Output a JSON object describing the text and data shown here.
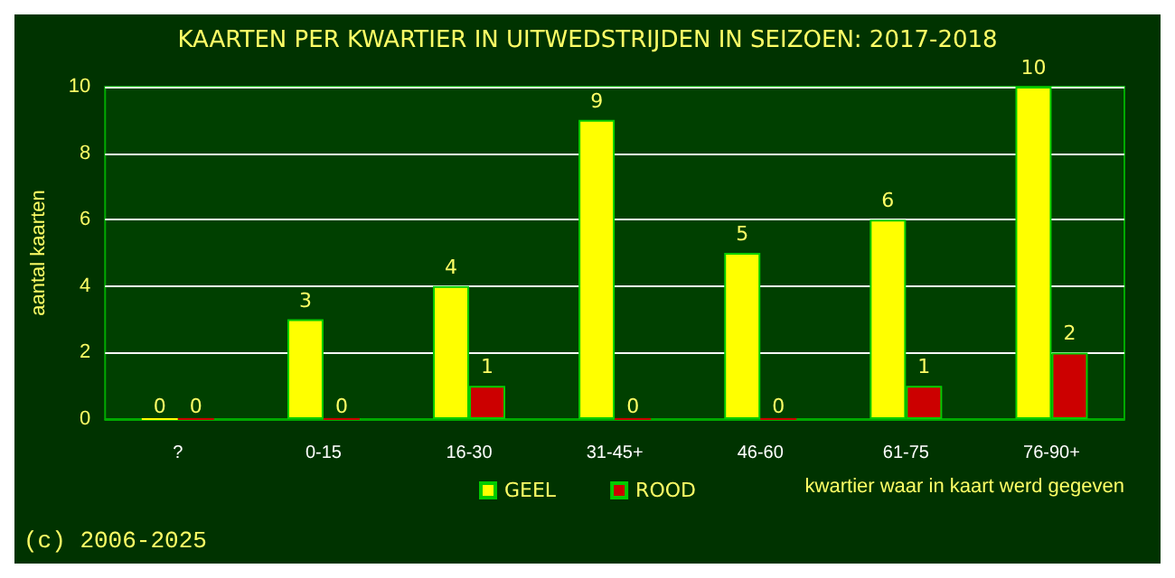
{
  "chart_data": {
    "type": "bar",
    "title": "KAARTEN PER KWARTIER IN UITWEDSTRIJDEN IN SEIZOEN: 2017-2018",
    "xlabel": "kwartier waar in kaart werd gegeven",
    "ylabel": "aantal kaarten",
    "categories": [
      "?",
      "0-15",
      "16-30",
      "31-45+",
      "46-60",
      "61-75",
      "76-90+"
    ],
    "series": [
      {
        "name": "GEEL",
        "color": "#ffff00",
        "values": [
          0,
          3,
          4,
          9,
          5,
          6,
          10
        ]
      },
      {
        "name": "ROOD",
        "color": "#cc0000",
        "values": [
          0,
          0,
          1,
          0,
          0,
          1,
          2
        ]
      }
    ],
    "ylim": [
      0,
      10
    ],
    "yticks": [
      0,
      2,
      4,
      6,
      8,
      10
    ],
    "grid": "y",
    "legend": "bottom",
    "data_labels": true,
    "annotations": [
      "(c) 2006-2025"
    ]
  }
}
